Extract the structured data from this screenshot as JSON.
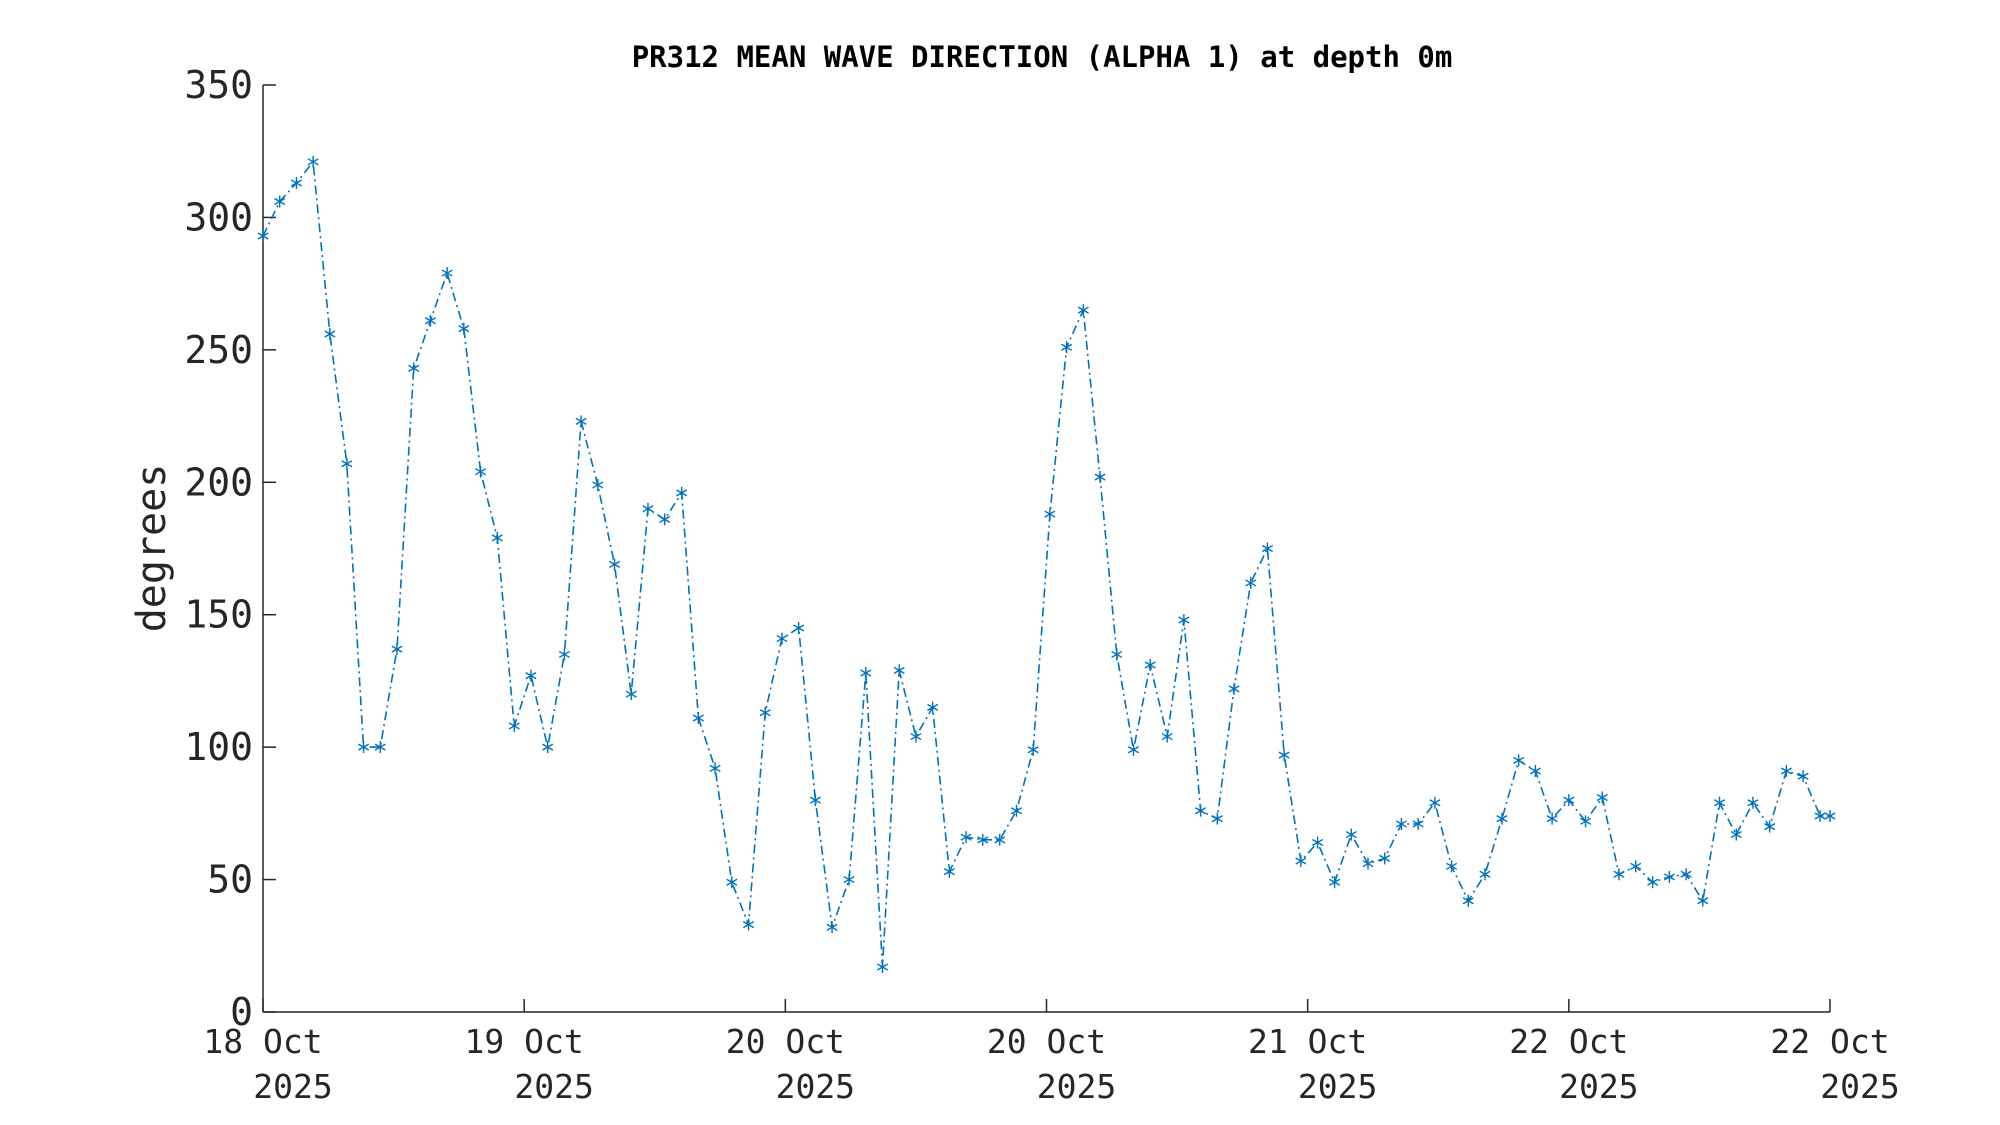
{
  "chart_data": {
    "type": "line",
    "title": "PR312 MEAN WAVE DIRECTION (ALPHA 1) at depth 0m",
    "xlabel": "",
    "ylabel": "degrees",
    "ylim": [
      0,
      350
    ],
    "yticks": [
      "0",
      "50",
      "100",
      "150",
      "200",
      "250",
      "300",
      "350"
    ],
    "xlim": [
      0,
      6
    ],
    "xticks": [
      {
        "line1": "18 Oct",
        "line2": "2025"
      },
      {
        "line1": "19 Oct",
        "line2": "2025"
      },
      {
        "line1": "20 Oct",
        "line2": "2025"
      },
      {
        "line1": "20 Oct",
        "line2": "2025"
      },
      {
        "line1": "21 Oct",
        "line2": "2025"
      },
      {
        "line1": "22 Oct",
        "line2": "2025"
      },
      {
        "line1": "22 Oct",
        "line2": "2025"
      }
    ],
    "grid": false,
    "line_style": "dash-dot",
    "marker": "asterisk",
    "color": "#0072BD",
    "series": [
      {
        "x": [
          0.0,
          0.064,
          0.128,
          0.192,
          0.256,
          0.321,
          0.385,
          0.449,
          0.513,
          0.577,
          0.641,
          0.705,
          0.769,
          0.833,
          0.897,
          0.962,
          1.026,
          1.09,
          1.154,
          1.218,
          1.282,
          1.346,
          1.41,
          1.474,
          1.538,
          1.603,
          1.667,
          1.731,
          1.795,
          1.859,
          1.923,
          1.987,
          2.051,
          2.115,
          2.179,
          2.244,
          2.308,
          2.372,
          2.436,
          2.5,
          2.564,
          2.628,
          2.692,
          2.756,
          2.821,
          2.885,
          2.949,
          3.013,
          3.077,
          3.141,
          3.205,
          3.269,
          3.333,
          3.397,
          3.462,
          3.526,
          3.59,
          3.654,
          3.718,
          3.782,
          3.846,
          3.91,
          3.974,
          4.038,
          4.103,
          4.167,
          4.231,
          4.295,
          4.359,
          4.423,
          4.487,
          4.551,
          4.615,
          4.679,
          4.744,
          4.808,
          4.872,
          4.936,
          5.0,
          5.064,
          5.128,
          5.192,
          5.256,
          5.321,
          5.385,
          5.449,
          5.513,
          5.577,
          5.641,
          5.705,
          5.769,
          5.833,
          5.897,
          5.962,
          6.0
        ],
        "values": [
          293,
          306,
          313,
          321,
          256,
          207,
          100,
          100,
          137,
          243,
          261,
          279,
          258,
          204,
          179,
          108,
          127,
          100,
          135,
          223,
          199,
          169,
          120,
          190,
          186,
          196,
          111,
          92,
          49,
          33,
          113,
          141,
          145,
          80,
          32,
          50,
          128,
          17,
          129,
          104,
          115,
          53,
          66,
          65,
          65,
          76,
          99,
          188,
          251,
          265,
          202,
          135,
          99,
          131,
          104,
          148,
          76,
          73,
          122,
          162,
          175,
          97,
          57,
          64,
          49,
          67,
          56,
          58,
          71,
          71,
          79,
          55,
          42,
          52,
          73,
          95,
          91,
          73,
          80,
          72,
          81,
          52,
          55,
          49,
          51,
          52,
          42,
          79,
          67,
          79,
          70,
          91,
          89,
          74,
          74
        ]
      }
    ]
  }
}
